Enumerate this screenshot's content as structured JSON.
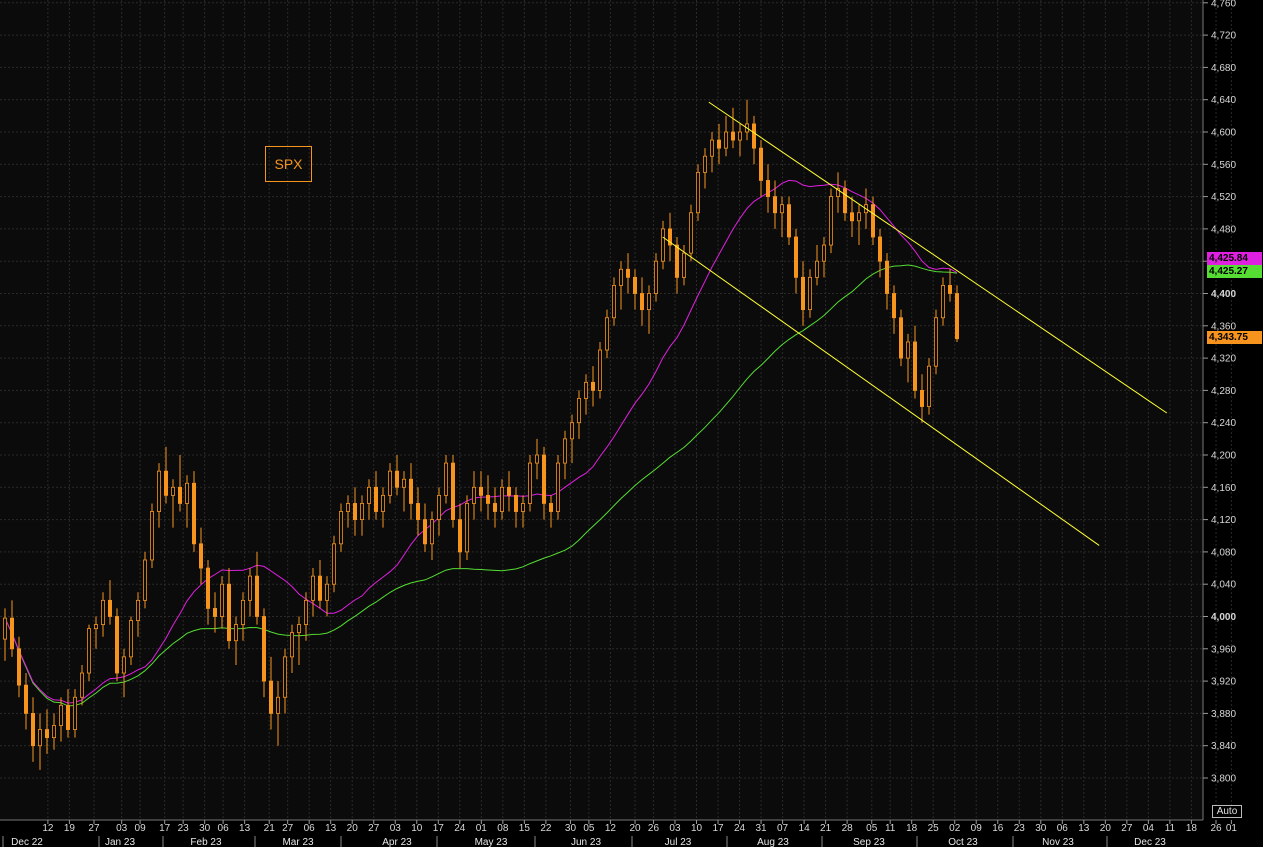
{
  "ticker": "SPX",
  "auto_label": "Auto",
  "colors": {
    "background": "#0b0b0b",
    "grid": "#2a2a2a",
    "candle": "#f7941d",
    "ma_fast": "#e020e0",
    "ma_slow": "#55dd33",
    "trendline": "#ffff33",
    "last_price": "#f7941d"
  },
  "price_labels": {
    "ma_fast": "4,425.84",
    "ma_slow": "4,425.27",
    "last": "4,343.75"
  },
  "chart_data": {
    "type": "candlestick",
    "title": "SPX",
    "ylim": [
      3780,
      4760
    ],
    "y_ticks": [
      3800,
      3840,
      3880,
      3920,
      3960,
      4000,
      4040,
      4080,
      4120,
      4160,
      4200,
      4240,
      4280,
      4320,
      4360,
      4400,
      4440,
      4480,
      4520,
      4560,
      4600,
      4640,
      4680,
      4720,
      4760
    ],
    "y_tick_labels": [
      "3,800",
      "3,840",
      "3,880",
      "3,920",
      "3,960",
      "4,000",
      "4,040",
      "4,080",
      "4,120",
      "4,160",
      "4,200",
      "4,240",
      "4,280",
      "4,320",
      "4,360",
      "4,400",
      "4,440",
      "4,480",
      "4,520",
      "4,560",
      "4,600",
      "4,640",
      "4,680",
      "4,720",
      "4,760"
    ],
    "x_day_ticks": [
      "12",
      "19",
      "27",
      "03",
      "09",
      "17",
      "23",
      "30",
      "06",
      "13",
      "21",
      "27",
      "06",
      "13",
      "20",
      "27",
      "03",
      "10",
      "17",
      "24",
      "01",
      "08",
      "15",
      "22",
      "30",
      "05",
      "12",
      "20",
      "26",
      "03",
      "10",
      "17",
      "24",
      "31",
      "07",
      "14",
      "21",
      "28",
      "05",
      "11",
      "18",
      "25",
      "02",
      "09",
      "16",
      "23",
      "30",
      "06",
      "13",
      "20",
      "27",
      "04",
      "11",
      "18",
      "26",
      "01"
    ],
    "x_month_labels": [
      "Dec 22",
      "Jan 23",
      "Feb 23",
      "Mar 23",
      "Apr 23",
      "May 23",
      "Jun 23",
      "Jul 23",
      "Aug 23",
      "Sep 23",
      "Oct 23",
      "Nov 23",
      "Dec 23"
    ],
    "candles": [
      [
        3972,
        4010,
        3945,
        3998
      ],
      [
        3998,
        4020,
        3950,
        3960
      ],
      [
        3960,
        3975,
        3900,
        3915
      ],
      [
        3915,
        3930,
        3860,
        3880
      ],
      [
        3880,
        3900,
        3820,
        3840
      ],
      [
        3840,
        3880,
        3810,
        3860
      ],
      [
        3860,
        3885,
        3830,
        3850
      ],
      [
        3850,
        3880,
        3835,
        3865
      ],
      [
        3865,
        3900,
        3845,
        3890
      ],
      [
        3890,
        3910,
        3850,
        3860
      ],
      [
        3860,
        3910,
        3850,
        3900
      ],
      [
        3900,
        3940,
        3890,
        3930
      ],
      [
        3930,
        3990,
        3920,
        3985
      ],
      [
        3985,
        4000,
        3960,
        3990
      ],
      [
        3990,
        4030,
        3975,
        4020
      ],
      [
        4020,
        4045,
        3990,
        4000
      ],
      [
        4000,
        4010,
        3920,
        3930
      ],
      [
        3930,
        3960,
        3900,
        3950
      ],
      [
        3950,
        4000,
        3940,
        3995
      ],
      [
        3995,
        4030,
        3975,
        4020
      ],
      [
        4020,
        4080,
        4010,
        4070
      ],
      [
        4070,
        4140,
        4060,
        4130
      ],
      [
        4130,
        4190,
        4110,
        4180
      ],
      [
        4180,
        4210,
        4140,
        4150
      ],
      [
        4150,
        4170,
        4110,
        4160
      ],
      [
        4160,
        4200,
        4130,
        4140
      ],
      [
        4140,
        4175,
        4110,
        4165
      ],
      [
        4165,
        4180,
        4080,
        4090
      ],
      [
        4090,
        4110,
        4040,
        4060
      ],
      [
        4060,
        4070,
        3990,
        4010
      ],
      [
        4010,
        4030,
        3980,
        4000
      ],
      [
        4000,
        4050,
        3985,
        4040
      ],
      [
        4040,
        4060,
        3960,
        3970
      ],
      [
        3970,
        4000,
        3940,
        3990
      ],
      [
        3990,
        4030,
        3970,
        4020
      ],
      [
        4020,
        4060,
        4000,
        4050
      ],
      [
        4050,
        4080,
        3990,
        4000
      ],
      [
        4000,
        4010,
        3900,
        3920
      ],
      [
        3920,
        3950,
        3860,
        3880
      ],
      [
        3880,
        3920,
        3840,
        3900
      ],
      [
        3900,
        3960,
        3880,
        3950
      ],
      [
        3950,
        3990,
        3930,
        3980
      ],
      [
        3980,
        4000,
        3940,
        3990
      ],
      [
        3990,
        4030,
        3970,
        4020
      ],
      [
        4020,
        4060,
        4000,
        4050
      ],
      [
        4050,
        4070,
        4010,
        4020
      ],
      [
        4020,
        4050,
        4000,
        4040
      ],
      [
        4040,
        4100,
        4030,
        4090
      ],
      [
        4090,
        4140,
        4080,
        4130
      ],
      [
        4130,
        4150,
        4110,
        4140
      ],
      [
        4140,
        4160,
        4100,
        4120
      ],
      [
        4120,
        4150,
        4100,
        4140
      ],
      [
        4140,
        4170,
        4120,
        4160
      ],
      [
        4160,
        4180,
        4120,
        4130
      ],
      [
        4130,
        4160,
        4110,
        4150
      ],
      [
        4150,
        4190,
        4140,
        4180
      ],
      [
        4180,
        4200,
        4150,
        4160
      ],
      [
        4160,
        4180,
        4130,
        4170
      ],
      [
        4170,
        4190,
        4120,
        4140
      ],
      [
        4140,
        4160,
        4100,
        4120
      ],
      [
        4120,
        4140,
        4080,
        4090
      ],
      [
        4090,
        4130,
        4070,
        4120
      ],
      [
        4120,
        4160,
        4100,
        4150
      ],
      [
        4150,
        4200,
        4140,
        4190
      ],
      [
        4190,
        4200,
        4110,
        4120
      ],
      [
        4120,
        4140,
        4060,
        4080
      ],
      [
        4080,
        4150,
        4070,
        4140
      ],
      [
        4140,
        4180,
        4120,
        4160
      ],
      [
        4160,
        4180,
        4130,
        4150
      ],
      [
        4150,
        4175,
        4120,
        4140
      ],
      [
        4140,
        4160,
        4110,
        4130
      ],
      [
        4130,
        4170,
        4120,
        4160
      ],
      [
        4160,
        4180,
        4130,
        4150
      ],
      [
        4150,
        4160,
        4110,
        4130
      ],
      [
        4130,
        4150,
        4110,
        4140
      ],
      [
        4140,
        4200,
        4130,
        4190
      ],
      [
        4190,
        4220,
        4170,
        4200
      ],
      [
        4200,
        4210,
        4120,
        4140
      ],
      [
        4140,
        4150,
        4110,
        4130
      ],
      [
        4130,
        4200,
        4120,
        4190
      ],
      [
        4190,
        4230,
        4170,
        4220
      ],
      [
        4220,
        4250,
        4190,
        4240
      ],
      [
        4240,
        4280,
        4220,
        4270
      ],
      [
        4270,
        4300,
        4250,
        4290
      ],
      [
        4290,
        4310,
        4260,
        4280
      ],
      [
        4280,
        4340,
        4270,
        4330
      ],
      [
        4330,
        4380,
        4320,
        4370
      ],
      [
        4370,
        4420,
        4360,
        4410
      ],
      [
        4410,
        4440,
        4380,
        4430
      ],
      [
        4430,
        4450,
        4400,
        4420
      ],
      [
        4420,
        4430,
        4380,
        4400
      ],
      [
        4400,
        4420,
        4360,
        4380
      ],
      [
        4380,
        4410,
        4350,
        4400
      ],
      [
        4400,
        4450,
        4390,
        4440
      ],
      [
        4440,
        4490,
        4430,
        4480
      ],
      [
        4480,
        4500,
        4440,
        4460
      ],
      [
        4460,
        4470,
        4400,
        4420
      ],
      [
        4420,
        4460,
        4410,
        4450
      ],
      [
        4450,
        4510,
        4440,
        4500
      ],
      [
        4500,
        4560,
        4490,
        4550
      ],
      [
        4550,
        4580,
        4530,
        4570
      ],
      [
        4570,
        4600,
        4550,
        4590
      ],
      [
        4590,
        4610,
        4560,
        4580
      ],
      [
        4580,
        4620,
        4570,
        4600
      ],
      [
        4600,
        4630,
        4580,
        4590
      ],
      [
        4590,
        4610,
        4570,
        4600
      ],
      [
        4600,
        4640,
        4590,
        4610
      ],
      [
        4610,
        4620,
        4560,
        4580
      ],
      [
        4580,
        4590,
        4520,
        4540
      ],
      [
        4540,
        4560,
        4500,
        4520
      ],
      [
        4520,
        4540,
        4480,
        4500
      ],
      [
        4500,
        4520,
        4470,
        4510
      ],
      [
        4510,
        4520,
        4460,
        4470
      ],
      [
        4470,
        4480,
        4400,
        4420
      ],
      [
        4420,
        4440,
        4360,
        4380
      ],
      [
        4380,
        4430,
        4370,
        4420
      ],
      [
        4420,
        4460,
        4410,
        4440
      ],
      [
        4440,
        4470,
        4420,
        4460
      ],
      [
        4460,
        4530,
        4450,
        4520
      ],
      [
        4520,
        4550,
        4500,
        4530
      ],
      [
        4530,
        4540,
        4490,
        4500
      ],
      [
        4500,
        4520,
        4470,
        4490
      ],
      [
        4490,
        4510,
        4460,
        4500
      ],
      [
        4500,
        4530,
        4480,
        4510
      ],
      [
        4510,
        4520,
        4460,
        4470
      ],
      [
        4470,
        4480,
        4420,
        4440
      ],
      [
        4440,
        4450,
        4380,
        4400
      ],
      [
        4400,
        4410,
        4350,
        4370
      ],
      [
        4370,
        4380,
        4310,
        4320
      ],
      [
        4320,
        4350,
        4290,
        4340
      ],
      [
        4340,
        4360,
        4270,
        4280
      ],
      [
        4280,
        4300,
        4240,
        4260
      ],
      [
        4260,
        4320,
        4250,
        4310
      ],
      [
        4310,
        4380,
        4300,
        4370
      ],
      [
        4370,
        4420,
        4360,
        4410
      ],
      [
        4410,
        4430,
        4390,
        4400
      ],
      [
        4400,
        4410,
        4340,
        4344
      ]
    ],
    "ma_fast_name": "",
    "ma_fast_last": 4425.84,
    "ma_slow_last": 4425.27,
    "last_price": 4343.75,
    "upper_trendline": [
      [
        "Jul 27 2023",
        4637
      ],
      [
        "Dec 23 2023",
        4252
      ]
    ],
    "lower_trendline": [
      [
        "Jul 12 2023",
        4470
      ],
      [
        "Dec 1 2023",
        4088
      ]
    ]
  }
}
